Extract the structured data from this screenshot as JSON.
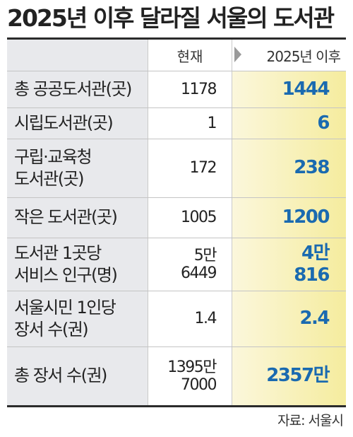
{
  "title": "2025년 이후 달라질 서울의 도서관",
  "header": {
    "current": "현재",
    "after": "2025년 이후"
  },
  "rows": [
    {
      "label": [
        "총 공공도서관(곳)"
      ],
      "current": [
        "1178"
      ],
      "after": [
        "1444"
      ]
    },
    {
      "label": [
        "시립도서관(곳)"
      ],
      "current": [
        "1"
      ],
      "after": [
        "6"
      ]
    },
    {
      "label": [
        "구립·교육청",
        "도서관(곳)"
      ],
      "current": [
        "172"
      ],
      "after": [
        "238"
      ]
    },
    {
      "label": [
        "작은 도서관(곳)"
      ],
      "current": [
        "1005"
      ],
      "after": [
        "1200"
      ]
    },
    {
      "label": [
        "도서관 1곳당",
        "서비스 인구(명)"
      ],
      "current": [
        "5만",
        "6449"
      ],
      "after": [
        "4만",
        "816"
      ]
    },
    {
      "label": [
        "서울시민 1인당",
        "장서 수(권)"
      ],
      "current": [
        "1.4"
      ],
      "after": [
        "2.4"
      ]
    },
    {
      "label": [
        "총 장서 수(권)"
      ],
      "current": [
        "1395만",
        "7000"
      ],
      "after": [
        "2357만"
      ]
    }
  ],
  "source": "자료: 서울시",
  "colors": {
    "accent": "#1a6ab0",
    "highlight": "#f5ec9e",
    "label_bg": "#e8e9ec"
  }
}
